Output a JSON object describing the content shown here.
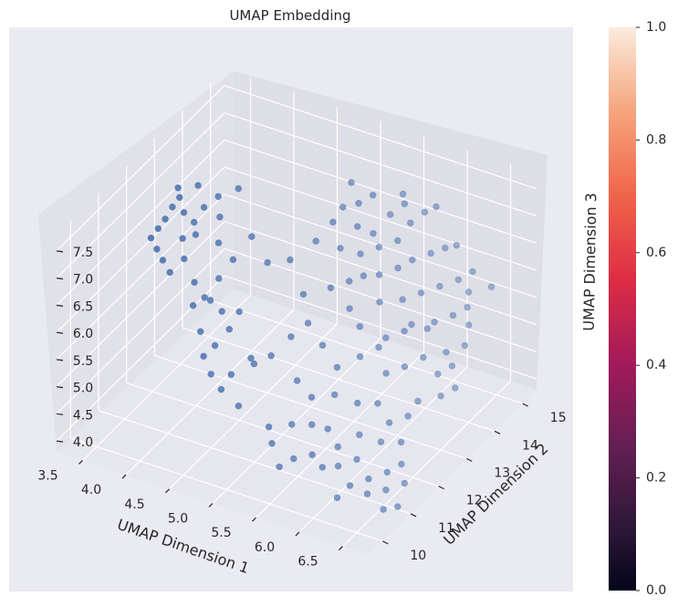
{
  "chart_data": {
    "type": "scatter",
    "title": "UMAP Embedding",
    "xlabel": "UMAP Dimension 1",
    "ylabel": "UMAP Dimension 2",
    "zlabel": "UMAP Dimension 3",
    "xlim": [
      3.2,
      6.8
    ],
    "ylim": [
      9.5,
      15.5
    ],
    "zlim": [
      3.8,
      7.8
    ],
    "x_ticks": [
      "3.5",
      "4.0",
      "4.5",
      "5.0",
      "5.5",
      "6.0",
      "6.5"
    ],
    "y_ticks": [
      "10",
      "11",
      "12",
      "13",
      "14",
      "15"
    ],
    "z_ticks": [
      "4.0",
      "4.5",
      "5.0",
      "5.5",
      "6.0",
      "6.5",
      "7.0",
      "7.5"
    ],
    "marker_color": "#4c72b0",
    "projection": "3d",
    "grid": true,
    "colorbar": {
      "min": 0.0,
      "max": 1.0,
      "ticks": [
        "0.0",
        "0.2",
        "0.4",
        "0.6",
        "0.8",
        "1.0"
      ],
      "colormap": "rocket"
    },
    "points": [
      [
        3.45,
        12.1,
        6.55
      ],
      [
        3.5,
        12.2,
        6.7
      ],
      [
        3.55,
        12.3,
        6.85
      ],
      [
        3.6,
        12.4,
        7.05
      ],
      [
        3.65,
        12.5,
        7.2
      ],
      [
        3.6,
        12.6,
        7.3
      ],
      [
        3.7,
        12.5,
        6.95
      ],
      [
        3.75,
        12.3,
        6.6
      ],
      [
        3.8,
        12.2,
        6.3
      ],
      [
        3.7,
        12.0,
        6.1
      ],
      [
        3.65,
        11.9,
        6.35
      ],
      [
        3.85,
        12.4,
        6.9
      ],
      [
        3.9,
        12.6,
        7.1
      ],
      [
        4.0,
        12.8,
        7.25
      ],
      [
        4.05,
        12.7,
        6.95
      ],
      [
        4.1,
        12.5,
        6.6
      ],
      [
        3.95,
        12.1,
        6.0
      ],
      [
        4.0,
        11.9,
        5.7
      ],
      [
        4.1,
        12.0,
        5.85
      ],
      [
        4.2,
        12.2,
        6.15
      ],
      [
        4.3,
        12.4,
        6.45
      ],
      [
        4.15,
        11.7,
        5.4
      ],
      [
        4.25,
        11.5,
        5.1
      ],
      [
        4.35,
        11.6,
        5.3
      ],
      [
        4.45,
        11.8,
        5.55
      ],
      [
        4.5,
        12.0,
        5.8
      ],
      [
        4.4,
        11.3,
        4.95
      ],
      [
        4.55,
        11.2,
        4.8
      ],
      [
        4.6,
        11.4,
        5.0
      ],
      [
        3.55,
        12.0,
        6.45
      ],
      [
        3.8,
        12.7,
        7.4
      ],
      [
        4.2,
        12.9,
        7.45
      ],
      [
        4.6,
        12.7,
        6.4
      ],
      [
        4.3,
        12.0,
        5.7
      ],
      [
        4.7,
        11.8,
        5.15
      ],
      [
        4.75,
        11.2,
        4.6
      ],
      [
        4.8,
        11.6,
        5.2
      ],
      [
        4.2,
        11.9,
        5.9
      ],
      [
        3.9,
        12.3,
        6.75
      ],
      [
        4.45,
        12.6,
        6.85
      ],
      [
        4.7,
        13.2,
        6.25
      ],
      [
        4.9,
        13.5,
        6.55
      ],
      [
        5.0,
        13.8,
        6.8
      ],
      [
        5.05,
        14.0,
        7.0
      ],
      [
        5.2,
        14.1,
        7.1
      ],
      [
        5.3,
        14.3,
        7.2
      ],
      [
        5.25,
        13.9,
        6.8
      ],
      [
        5.4,
        14.0,
        6.7
      ],
      [
        5.5,
        14.3,
        6.95
      ],
      [
        5.6,
        14.5,
        7.1
      ],
      [
        5.15,
        13.6,
        6.5
      ],
      [
        5.35,
        13.7,
        6.45
      ],
      [
        5.5,
        13.9,
        6.55
      ],
      [
        5.65,
        14.1,
        6.65
      ],
      [
        5.7,
        14.4,
        6.85
      ],
      [
        5.8,
        14.6,
        7.0
      ],
      [
        5.9,
        14.7,
        7.1
      ],
      [
        5.45,
        13.5,
        6.2
      ],
      [
        5.6,
        13.6,
        6.25
      ],
      [
        5.75,
        13.8,
        6.35
      ],
      [
        5.85,
        14.0,
        6.45
      ],
      [
        6.0,
        14.2,
        6.55
      ],
      [
        6.1,
        14.4,
        6.6
      ],
      [
        6.2,
        14.5,
        6.65
      ],
      [
        5.7,
        13.3,
        5.95
      ],
      [
        5.9,
        13.5,
        6.0
      ],
      [
        6.05,
        13.7,
        6.1
      ],
      [
        6.2,
        13.9,
        6.2
      ],
      [
        6.35,
        14.1,
        6.3
      ],
      [
        6.45,
        14.3,
        6.4
      ],
      [
        6.1,
        13.2,
        5.8
      ],
      [
        6.3,
        13.4,
        5.85
      ],
      [
        6.45,
        13.6,
        5.95
      ],
      [
        6.55,
        13.8,
        6.05
      ],
      [
        5.1,
        12.6,
        5.6
      ],
      [
        5.3,
        12.5,
        5.35
      ],
      [
        5.5,
        12.4,
        5.1
      ],
      [
        5.2,
        11.9,
        4.95
      ],
      [
        5.4,
        11.8,
        4.8
      ],
      [
        5.6,
        12.0,
        4.85
      ],
      [
        5.0,
        12.3,
        5.45
      ],
      [
        4.9,
        11.9,
        5.25
      ],
      [
        5.7,
        12.6,
        5.3
      ],
      [
        5.85,
        12.8,
        5.45
      ],
      [
        5.6,
        12.9,
        5.65
      ],
      [
        5.45,
        13.0,
        5.85
      ],
      [
        6.0,
        12.6,
        5.15
      ],
      [
        6.15,
        12.8,
        5.25
      ],
      [
        6.3,
        13.0,
        5.4
      ],
      [
        6.5,
        13.2,
        5.5
      ],
      [
        6.65,
        13.4,
        5.6
      ],
      [
        6.5,
        12.9,
        5.25
      ],
      [
        6.6,
        13.1,
        5.35
      ],
      [
        5.8,
        12.2,
        4.7
      ],
      [
        6.0,
        12.3,
        4.75
      ],
      [
        5.95,
        11.8,
        4.4
      ],
      [
        6.2,
        12.1,
        4.6
      ],
      [
        6.35,
        12.3,
        4.7
      ],
      [
        5.3,
        11.4,
        4.45
      ],
      [
        5.5,
        11.5,
        4.5
      ],
      [
        5.65,
        11.6,
        4.45
      ],
      [
        5.8,
        11.5,
        4.25
      ],
      [
        5.6,
        11.2,
        4.15
      ],
      [
        5.45,
        11.0,
        4.1
      ],
      [
        5.75,
        11.1,
        4.05
      ],
      [
        5.9,
        11.2,
        4.1
      ],
      [
        6.05,
        11.4,
        4.2
      ],
      [
        6.1,
        11.0,
        3.95
      ],
      [
        6.25,
        11.2,
        4.05
      ],
      [
        6.4,
        11.4,
        4.15
      ],
      [
        6.5,
        11.6,
        4.25
      ],
      [
        6.3,
        11.0,
        3.9
      ],
      [
        6.45,
        11.2,
        3.95
      ],
      [
        6.6,
        11.4,
        4.05
      ],
      [
        6.65,
        11.0,
        3.85
      ],
      [
        6.55,
        10.8,
        3.85
      ],
      [
        6.2,
        11.8,
        4.4
      ],
      [
        6.4,
        11.9,
        4.45
      ],
      [
        5.9,
        12.9,
        5.6
      ],
      [
        6.05,
        13.1,
        5.7
      ],
      [
        6.25,
        13.3,
        5.75
      ],
      [
        4.95,
        12.9,
        5.9
      ],
      [
        5.2,
        13.1,
        6.05
      ],
      [
        5.35,
        13.3,
        6.15
      ],
      [
        6.4,
        12.5,
        4.9
      ],
      [
        6.6,
        12.7,
        5.0
      ],
      [
        6.7,
        12.9,
        5.1
      ],
      [
        6.05,
        10.7,
        3.85
      ],
      [
        5.2,
        11.0,
        4.25
      ],
      [
        5.1,
        11.2,
        4.4
      ],
      [
        5.35,
        10.8,
        4.0
      ],
      [
        6.5,
        14.0,
        6.2
      ],
      [
        6.7,
        14.2,
        6.3
      ],
      [
        6.6,
        13.7,
        5.8
      ],
      [
        5.55,
        14.6,
        7.2
      ],
      [
        5.05,
        14.3,
        7.3
      ]
    ]
  }
}
